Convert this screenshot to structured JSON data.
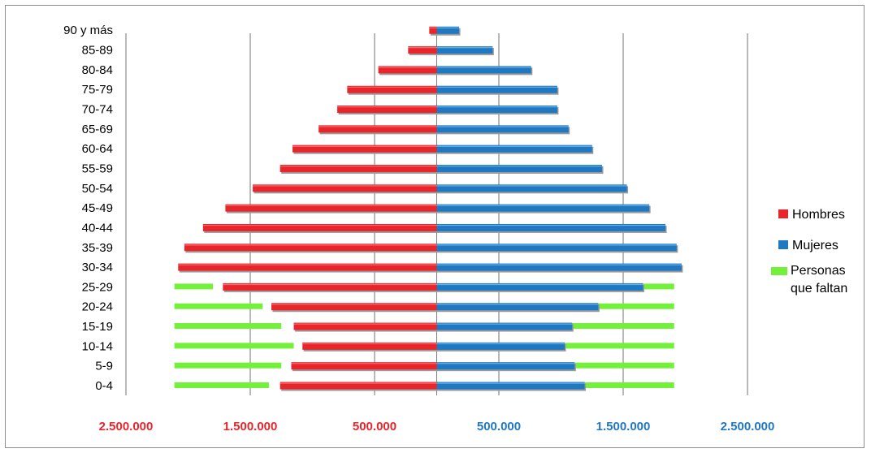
{
  "chart_data": {
    "type": "bar",
    "orientation": "horizontal",
    "subtype": "population-pyramid",
    "categories": [
      "0-4",
      "5-9",
      "10-14",
      "15-19",
      "20-24",
      "25-29",
      "30-34",
      "35-39",
      "40-44",
      "45-49",
      "50-54",
      "55-59",
      "60-64",
      "65-69",
      "70-74",
      "75-79",
      "80-84",
      "85-89",
      "90 y más"
    ],
    "series": [
      {
        "name": "Hombres",
        "side": "left",
        "color": "#e8252b",
        "values": [
          1260000,
          1170000,
          1080000,
          1150000,
          1330000,
          1720000,
          2080000,
          2030000,
          1880000,
          1700000,
          1480000,
          1260000,
          1160000,
          950000,
          800000,
          720000,
          470000,
          230000,
          60000
        ]
      },
      {
        "name": "Mujeres",
        "side": "right",
        "color": "#1f78c2",
        "values": [
          1190000,
          1110000,
          1030000,
          1090000,
          1300000,
          1660000,
          1970000,
          1930000,
          1840000,
          1710000,
          1530000,
          1330000,
          1250000,
          1060000,
          970000,
          970000,
          760000,
          450000,
          180000
        ]
      },
      {
        "name": "Personas que faltan",
        "color": "#72f03a",
        "left_ranges": [
          [
            1350000,
            2110000
          ],
          [
            1250000,
            2110000
          ],
          [
            1150000,
            2110000
          ],
          [
            1250000,
            2110000
          ],
          [
            1400000,
            2110000
          ],
          [
            1800000,
            2110000
          ],
          null,
          null,
          null,
          null,
          null,
          null,
          null,
          null,
          null,
          null,
          null,
          null,
          null
        ],
        "right_ranges": [
          [
            1170000,
            1910000
          ],
          [
            1110000,
            1910000
          ],
          [
            1020000,
            1910000
          ],
          [
            1060000,
            1910000
          ],
          [
            1270000,
            1910000
          ],
          [
            1660000,
            1910000
          ],
          null,
          null,
          null,
          null,
          null,
          null,
          null,
          null,
          null,
          null,
          null,
          null,
          null
        ]
      }
    ],
    "x_ticks_left": [
      "2.500.000",
      "1.500.000",
      "500.000"
    ],
    "x_ticks_right": [
      "500.000",
      "1.500.000",
      "2.500.000"
    ],
    "x_tick_values_left": [
      2500000,
      1500000,
      500000
    ],
    "x_tick_values_right": [
      500000,
      1500000,
      2500000
    ],
    "xlim": [
      -2500000,
      2500000
    ],
    "tick_color_left": "#e8252b",
    "tick_color_right": "#1f78c2",
    "grid": true,
    "legend_position": "right",
    "legend": [
      {
        "label": "Hombres",
        "color": "#e8252b"
      },
      {
        "label": "Mujeres",
        "color": "#1f78c2"
      },
      {
        "label_lines": [
          "Personas",
          "que faltan"
        ],
        "color": "#72f03a"
      }
    ]
  }
}
